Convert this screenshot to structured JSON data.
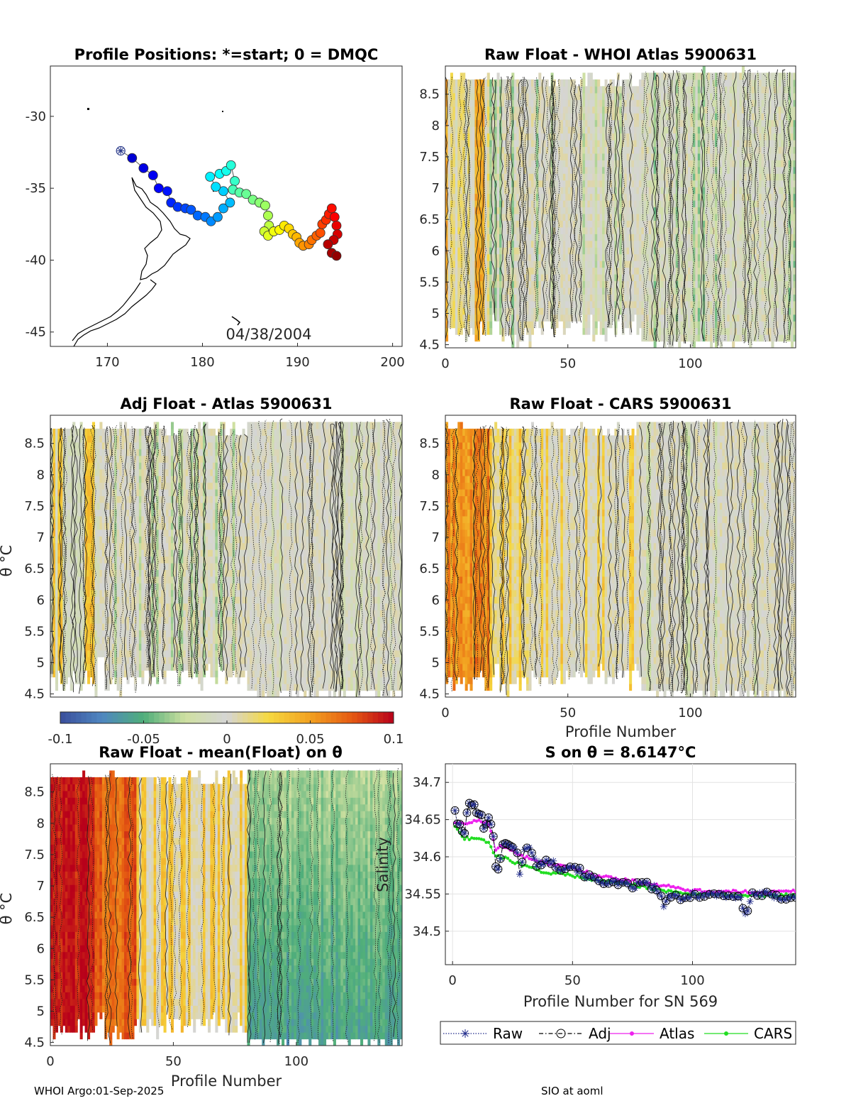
{
  "footer": {
    "left": "WHOI Argo:01-Sep-2025",
    "right": "SIO at aoml"
  },
  "colorbar": {
    "ticks": [
      "-0.1",
      "-0.05",
      "0",
      "0.05",
      "0.1"
    ],
    "values": [
      -0.1,
      -0.05,
      0,
      0.05,
      0.1
    ],
    "colors": [
      "#3a4f9c",
      "#4f86c0",
      "#4fae7a",
      "#cfe0a0",
      "#d5d5d5",
      "#f5d940",
      "#f2a020",
      "#e55a12",
      "#b8001a"
    ]
  },
  "chart_data": [
    {
      "id": "map",
      "type": "scatter",
      "title": "Profile Positions: *=start; 0 = DMQC",
      "annotation": "04/38/2004",
      "xlim": [
        164,
        201
      ],
      "ylim": [
        -46,
        -26.5
      ],
      "xticks": [
        170,
        180,
        190,
        200
      ],
      "xtick_labels": [
        "170",
        "180",
        "190",
        "200"
      ],
      "yticks": [
        -30,
        -35,
        -40,
        -45
      ],
      "ytick_labels": [
        "-30",
        "-35",
        "-40",
        "-45"
      ],
      "start": {
        "lon": 171.4,
        "lat": -32.4
      },
      "track": [
        [
          171.4,
          -32.4
        ],
        [
          172.6,
          -32.9
        ],
        [
          173.8,
          -33.6
        ],
        [
          174.8,
          -34.1
        ],
        [
          175.4,
          -35.0
        ],
        [
          176.3,
          -35.2
        ],
        [
          176.7,
          -36.0
        ],
        [
          177.4,
          -36.3
        ],
        [
          178.2,
          -36.4
        ],
        [
          178.8,
          -36.5
        ],
        [
          179.5,
          -36.9
        ],
        [
          180.3,
          -37.0
        ],
        [
          180.9,
          -37.3
        ],
        [
          181.6,
          -37.0
        ],
        [
          182.2,
          -36.4
        ],
        [
          182.9,
          -36.0
        ],
        [
          182.2,
          -35.2
        ],
        [
          181.4,
          -34.9
        ],
        [
          180.8,
          -34.2
        ],
        [
          181.8,
          -34.0
        ],
        [
          182.5,
          -33.8
        ],
        [
          183.0,
          -33.4
        ],
        [
          183.4,
          -34.5
        ],
        [
          183.2,
          -35.1
        ],
        [
          183.9,
          -35.3
        ],
        [
          184.6,
          -35.4
        ],
        [
          185.3,
          -35.8
        ],
        [
          186.0,
          -36.0
        ],
        [
          186.6,
          -36.2
        ],
        [
          186.9,
          -36.9
        ],
        [
          187.0,
          -37.6
        ],
        [
          186.5,
          -38.0
        ],
        [
          186.9,
          -38.3
        ],
        [
          187.5,
          -38.0
        ],
        [
          188.1,
          -37.9
        ],
        [
          188.6,
          -37.6
        ],
        [
          189.1,
          -37.8
        ],
        [
          189.5,
          -38.2
        ],
        [
          189.9,
          -38.4
        ],
        [
          190.2,
          -38.8
        ],
        [
          190.6,
          -39.0
        ],
        [
          191.2,
          -38.9
        ],
        [
          191.5,
          -38.6
        ],
        [
          192.0,
          -38.3
        ],
        [
          192.4,
          -38.1
        ],
        [
          192.6,
          -37.5
        ],
        [
          193.0,
          -37.2
        ],
        [
          193.3,
          -36.8
        ],
        [
          193.6,
          -36.4
        ],
        [
          193.9,
          -37.0
        ],
        [
          194.1,
          -37.6
        ],
        [
          194.2,
          -38.2
        ],
        [
          193.8,
          -38.6
        ],
        [
          193.2,
          -38.9
        ],
        [
          193.6,
          -39.5
        ],
        [
          194.1,
          -39.7
        ]
      ]
    },
    {
      "id": "whoi",
      "type": "heatmap",
      "title": "Raw Float - WHOI Atlas  5900631",
      "xlim": [
        0,
        143
      ],
      "ylim": [
        4.45,
        8.95
      ],
      "xticks": [
        0,
        50,
        100
      ],
      "xtick_labels": [
        "0",
        "50",
        "100"
      ],
      "yticks": [
        8.5,
        8,
        7.5,
        7,
        6.5,
        6,
        5.5,
        5,
        4.5
      ],
      "ytick_labels": [
        "8.5",
        "8",
        "7.5",
        "7",
        "6.5",
        "6",
        "5.5",
        "5",
        "4.5"
      ]
    },
    {
      "id": "adj",
      "type": "heatmap",
      "title": "Adj Float - Atlas  5900631",
      "ylabel": "θ °C",
      "xlim": [
        0,
        143
      ],
      "ylim": [
        4.45,
        8.95
      ],
      "yticks": [
        8.5,
        8,
        7.5,
        7,
        6.5,
        6,
        5.5,
        5,
        4.5
      ],
      "ytick_labels": [
        "8.5",
        "8",
        "7.5",
        "7",
        "6.5",
        "6",
        "5.5",
        "5",
        "4.5"
      ]
    },
    {
      "id": "cars",
      "type": "heatmap",
      "title": "Raw Float - CARS  5900631",
      "xlabel": "Profile Number",
      "xlim": [
        0,
        143
      ],
      "ylim": [
        4.45,
        8.95
      ],
      "xticks": [
        0,
        50,
        100
      ],
      "xtick_labels": [
        "0",
        "50",
        "100"
      ],
      "yticks": [
        8.5,
        8,
        7.5,
        7,
        6.5,
        6,
        5.5,
        5,
        4.5
      ],
      "ytick_labels": [
        "8.5",
        "8",
        "7.5",
        "7",
        "6.5",
        "6",
        "5.5",
        "5",
        "4.5"
      ]
    },
    {
      "id": "mean",
      "type": "heatmap",
      "title": "Raw Float - mean(Float) on θ",
      "xlabel": "Profile Number",
      "ylabel": "θ °C",
      "xlim": [
        0,
        143
      ],
      "ylim": [
        4.45,
        8.95
      ],
      "xticks": [
        0,
        50,
        100
      ],
      "xtick_labels": [
        "0",
        "50",
        "100"
      ],
      "yticks": [
        8.5,
        8,
        7.5,
        7,
        6.5,
        6,
        5.5,
        5,
        4.5
      ],
      "ytick_labels": [
        "8.5",
        "8",
        "7.5",
        "7",
        "6.5",
        "6",
        "5.5",
        "5",
        "4.5"
      ]
    },
    {
      "id": "salinity",
      "type": "line",
      "title": "S on θ = 8.6147°C",
      "xlabel": "Profile Number for SN 569",
      "ylabel": "Salinity",
      "xlim": [
        -3,
        143
      ],
      "ylim": [
        34.455,
        34.725
      ],
      "xticks": [
        0,
        50,
        100
      ],
      "xtick_labels": [
        "0",
        "50",
        "100"
      ],
      "yticks": [
        34.7,
        34.65,
        34.6,
        34.55,
        34.5
      ],
      "ytick_labels": [
        "34.7",
        "34.65",
        "34.6",
        "34.55",
        "34.5"
      ],
      "legend": [
        "Raw",
        "Adj",
        "Atlas",
        "CARS"
      ],
      "series_colors": [
        "#1f2a8a",
        "#000000",
        "#ee22ee",
        "#22dd22"
      ],
      "raw_anchors": [
        [
          1,
          34.664
        ],
        [
          2,
          34.645
        ],
        [
          5,
          34.63
        ],
        [
          6,
          34.662
        ],
        [
          7,
          34.669
        ],
        [
          8,
          34.672
        ],
        [
          9,
          34.667
        ],
        [
          10,
          34.66
        ],
        [
          12,
          34.653
        ],
        [
          13,
          34.64
        ],
        [
          14,
          34.648
        ],
        [
          15,
          34.656
        ],
        [
          16,
          34.643
        ],
        [
          17,
          34.63
        ],
        [
          18,
          34.584
        ],
        [
          19,
          34.583
        ],
        [
          20,
          34.6
        ],
        [
          21,
          34.618
        ],
        [
          23,
          34.62
        ],
        [
          25,
          34.61
        ],
        [
          27,
          34.605
        ],
        [
          28,
          34.58
        ],
        [
          30,
          34.61
        ],
        [
          32,
          34.611
        ],
        [
          35,
          34.59
        ],
        [
          40,
          34.595
        ],
        [
          45,
          34.585
        ],
        [
          50,
          34.588
        ],
        [
          55,
          34.576
        ],
        [
          60,
          34.568
        ],
        [
          65,
          34.566
        ],
        [
          70,
          34.563
        ],
        [
          75,
          34.56
        ],
        [
          80,
          34.565
        ],
        [
          85,
          34.556
        ],
        [
          88,
          34.537
        ],
        [
          90,
          34.545
        ],
        [
          92,
          34.55
        ],
        [
          95,
          34.54
        ],
        [
          100,
          34.55
        ],
        [
          105,
          34.548
        ],
        [
          110,
          34.55
        ],
        [
          115,
          34.548
        ],
        [
          120,
          34.545
        ],
        [
          122,
          34.52
        ],
        [
          125,
          34.55
        ],
        [
          130,
          34.55
        ],
        [
          135,
          34.545
        ],
        [
          143,
          34.547
        ]
      ],
      "atlas_anchors": [
        [
          1,
          34.645
        ],
        [
          5,
          34.645
        ],
        [
          10,
          34.648
        ],
        [
          15,
          34.645
        ],
        [
          18,
          34.61
        ],
        [
          20,
          34.615
        ],
        [
          30,
          34.6
        ],
        [
          40,
          34.59
        ],
        [
          50,
          34.585
        ],
        [
          60,
          34.575
        ],
        [
          70,
          34.57
        ],
        [
          80,
          34.565
        ],
        [
          90,
          34.56
        ],
        [
          100,
          34.555
        ],
        [
          110,
          34.553
        ],
        [
          120,
          34.553
        ],
        [
          130,
          34.552
        ],
        [
          143,
          34.554
        ]
      ],
      "cars_anchors": [
        [
          1,
          34.64
        ],
        [
          5,
          34.625
        ],
        [
          10,
          34.625
        ],
        [
          15,
          34.62
        ],
        [
          18,
          34.6
        ],
        [
          20,
          34.6
        ],
        [
          30,
          34.588
        ],
        [
          40,
          34.578
        ],
        [
          50,
          34.575
        ],
        [
          60,
          34.568
        ],
        [
          70,
          34.565
        ],
        [
          80,
          34.56
        ],
        [
          90,
          34.553
        ],
        [
          100,
          34.55
        ],
        [
          110,
          34.55
        ],
        [
          120,
          34.549
        ],
        [
          130,
          34.548
        ],
        [
          143,
          34.549
        ]
      ]
    }
  ]
}
